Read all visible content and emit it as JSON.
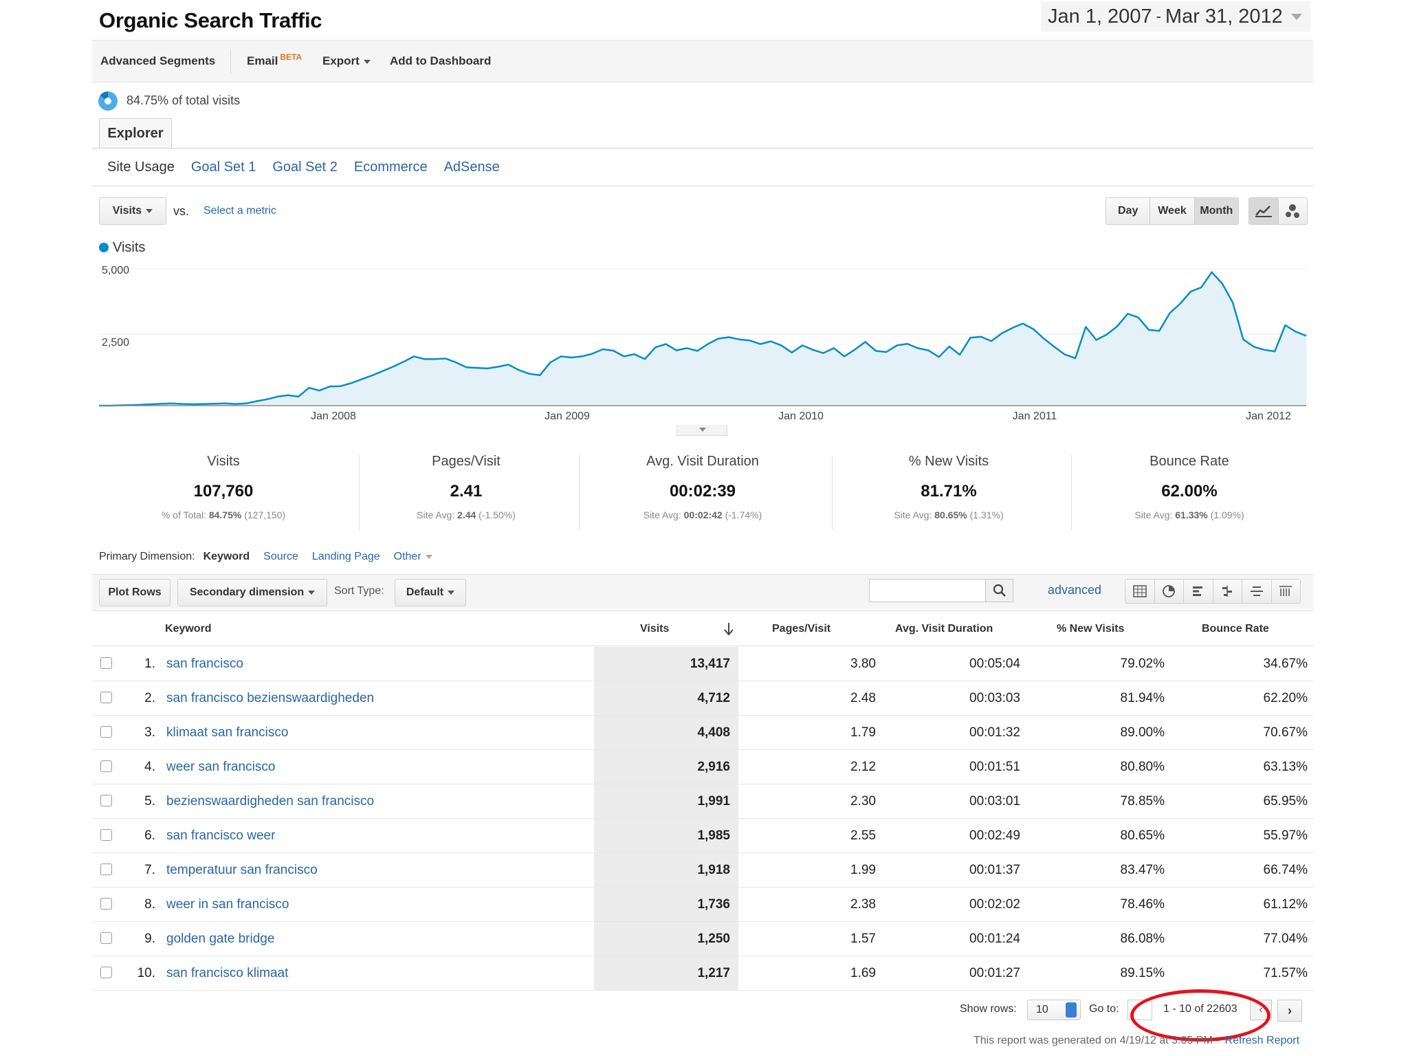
{
  "header": {
    "title": "Organic Search Traffic",
    "date_start": "Jan 1, 2007",
    "date_sep": "-",
    "date_end": "Mar 31, 2012"
  },
  "toolbar": {
    "advanced_segments": "Advanced Segments",
    "email": "Email",
    "beta": "BETA",
    "export": "Export",
    "add_to_dashboard": "Add to Dashboard"
  },
  "segment": {
    "total_visits": "84.75% of total visits",
    "share": 84.75
  },
  "explorer_tab": "Explorer",
  "subtabs": [
    "Site Usage",
    "Goal Set 1",
    "Goal Set 2",
    "Ecommerce",
    "AdSense"
  ],
  "metric_picker": {
    "metric": "Visits",
    "vs": "vs.",
    "select": "Select a metric"
  },
  "period": {
    "day": "Day",
    "week": "Week",
    "month": "Month",
    "active": "Month"
  },
  "chart_data": {
    "type": "area",
    "series": [
      {
        "name": "Visits",
        "values": [
          0,
          0,
          10,
          20,
          30,
          50,
          70,
          80,
          60,
          50,
          60,
          70,
          80,
          60,
          80,
          160,
          230,
          330,
          380,
          330,
          650,
          550,
          700,
          710,
          820,
          960,
          1100,
          1260,
          1420,
          1600,
          1800,
          1700,
          1700,
          1720,
          1580,
          1400,
          1380,
          1360,
          1420,
          1500,
          1300,
          1160,
          1110,
          1580,
          1800,
          1760,
          1800,
          1900,
          2060,
          2010,
          1800,
          1880,
          1700,
          2130,
          2250,
          2020,
          2100,
          2000,
          2250,
          2450,
          2500,
          2420,
          2380,
          2250,
          2350,
          2200,
          1940,
          2200,
          2040,
          1920,
          2100,
          1800,
          2050,
          2330,
          2000,
          1960,
          2200,
          2260,
          2100,
          2020,
          1780,
          2160,
          1860,
          2480,
          2520,
          2360,
          2640,
          2840,
          3000,
          2800,
          2450,
          2150,
          1870,
          1730,
          2880,
          2400,
          2600,
          2900,
          3360,
          3220,
          2770,
          2730,
          3380,
          3730,
          4170,
          4320,
          4880,
          4460,
          3770,
          2420,
          2150,
          2040,
          1980,
          2940,
          2700,
          2550
        ]
      }
    ],
    "x_tick_labels": [
      "Jan 2008",
      "Jan 2009",
      "Jan 2010",
      "Jan 2011",
      "Jan 2012"
    ],
    "y_tick_labels": [
      "5,000",
      "2,500"
    ],
    "ylim": [
      0,
      5000
    ],
    "legend": "top-left",
    "grid": true,
    "colors": {
      "line": "#058dc7",
      "fill": "#e5f1f8"
    }
  },
  "scorecards": [
    {
      "label": "Visits",
      "value": "107,760",
      "sub_prefix": "% of Total:",
      "sub_bold": "84.75%",
      "sub_suffix": "(127,150)"
    },
    {
      "label": "Pages/Visit",
      "value": "2.41",
      "sub_prefix": "Site Avg:",
      "sub_bold": "2.44",
      "sub_suffix": "(-1.50%)"
    },
    {
      "label": "Avg. Visit Duration",
      "value": "00:02:39",
      "sub_prefix": "Site Avg:",
      "sub_bold": "00:02:42",
      "sub_suffix": "(-1.74%)"
    },
    {
      "label": "% New Visits",
      "value": "81.71%",
      "sub_prefix": "Site Avg:",
      "sub_bold": "80.65%",
      "sub_suffix": "(1.31%)"
    },
    {
      "label": "Bounce Rate",
      "value": "62.00%",
      "sub_prefix": "Site Avg:",
      "sub_bold": "61.33%",
      "sub_suffix": "(1.09%)"
    }
  ],
  "primary_dimension": {
    "label": "Primary Dimension:",
    "active": "Keyword",
    "links": [
      "Source",
      "Landing Page",
      "Other"
    ]
  },
  "table_toolbar": {
    "plot_rows": "Plot Rows",
    "secondary_dimension": "Secondary dimension",
    "sort_type_label": "Sort Type:",
    "sort_type_value": "Default",
    "advanced": "advanced"
  },
  "table": {
    "columns": [
      "Keyword",
      "Visits",
      "Pages/Visit",
      "Avg. Visit Duration",
      "% New Visits",
      "Bounce Rate"
    ],
    "rows": [
      {
        "n": "1.",
        "keyword": "san francisco",
        "visits": "13,417",
        "pages": "3.80",
        "duration": "00:05:04",
        "new": "79.02%",
        "bounce": "34.67%"
      },
      {
        "n": "2.",
        "keyword": "san francisco bezienswaardigheden",
        "visits": "4,712",
        "pages": "2.48",
        "duration": "00:03:03",
        "new": "81.94%",
        "bounce": "62.20%"
      },
      {
        "n": "3.",
        "keyword": "klimaat san francisco",
        "visits": "4,408",
        "pages": "1.79",
        "duration": "00:01:32",
        "new": "89.00%",
        "bounce": "70.67%"
      },
      {
        "n": "4.",
        "keyword": "weer san francisco",
        "visits": "2,916",
        "pages": "2.12",
        "duration": "00:01:51",
        "new": "80.80%",
        "bounce": "63.13%"
      },
      {
        "n": "5.",
        "keyword": "bezienswaardigheden san francisco",
        "visits": "1,991",
        "pages": "2.30",
        "duration": "00:03:01",
        "new": "78.85%",
        "bounce": "65.95%"
      },
      {
        "n": "6.",
        "keyword": "san francisco weer",
        "visits": "1,985",
        "pages": "2.55",
        "duration": "00:02:49",
        "new": "80.65%",
        "bounce": "55.97%"
      },
      {
        "n": "7.",
        "keyword": "temperatuur san francisco",
        "visits": "1,918",
        "pages": "1.99",
        "duration": "00:01:37",
        "new": "83.47%",
        "bounce": "66.74%"
      },
      {
        "n": "8.",
        "keyword": "weer in san francisco",
        "visits": "1,736",
        "pages": "2.38",
        "duration": "00:02:02",
        "new": "78.46%",
        "bounce": "61.12%"
      },
      {
        "n": "9.",
        "keyword": "golden gate bridge",
        "visits": "1,250",
        "pages": "1.57",
        "duration": "00:01:24",
        "new": "86.08%",
        "bounce": "77.04%"
      },
      {
        "n": "10.",
        "keyword": "san francisco klimaat",
        "visits": "1,217",
        "pages": "1.69",
        "duration": "00:01:27",
        "new": "89.15%",
        "bounce": "71.57%"
      }
    ]
  },
  "pagination": {
    "show_rows_label": "Show rows:",
    "rows_value": "10",
    "goto_label": "Go to:",
    "page_info": "1 - 10 of 22603"
  },
  "footer": {
    "generated": "This report was generated on 4/19/12 at 3:05 PM -",
    "refresh": "Refresh Report"
  },
  "colors": {
    "link": "#2866a8",
    "accent": "#058dc7",
    "highlight": "#e0141e",
    "beta": "#e8751a"
  }
}
